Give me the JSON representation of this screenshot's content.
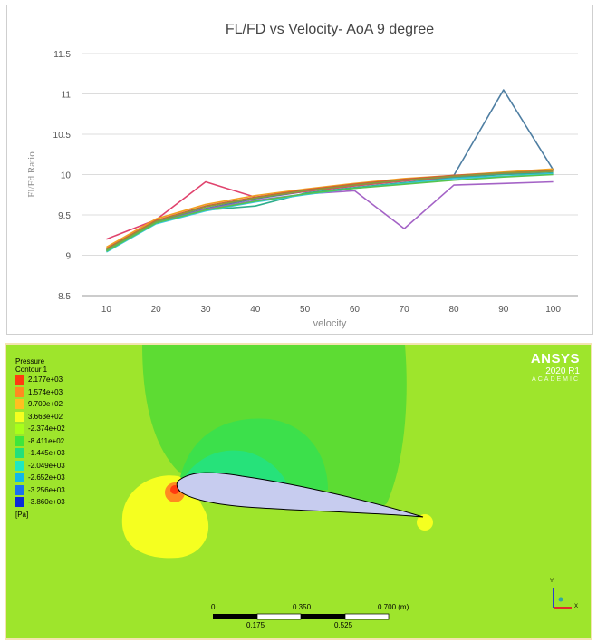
{
  "chart_data": {
    "type": "line",
    "title": "FL/FD vs Velocity- AoA 9 degree",
    "xlabel": "velocity",
    "ylabel": "Fl/Fd Ratio",
    "categories": [
      "10",
      "20",
      "30",
      "40",
      "50",
      "60",
      "70",
      "80",
      "90",
      "100"
    ],
    "ylim": [
      8.5,
      11.5
    ],
    "yticks": [
      "8.5",
      "9",
      "9.5",
      "10",
      "10.5",
      "11",
      "11.5"
    ],
    "grid": true,
    "legend": "none",
    "series": [
      {
        "color": "#4e7ea2",
        "values": [
          9.06,
          9.41,
          9.58,
          9.7,
          9.79,
          9.86,
          9.92,
          9.99,
          11.05,
          10.06
        ]
      },
      {
        "color": "#e0436d",
        "values": [
          9.2,
          9.44,
          9.91,
          9.72,
          9.79,
          9.86,
          9.92,
          9.97,
          10.01,
          10.04
        ]
      },
      {
        "color": "#f0a020",
        "values": [
          9.1,
          9.45,
          9.63,
          9.74,
          9.82,
          9.89,
          9.95,
          9.99,
          10.03,
          10.07
        ]
      },
      {
        "color": "#d2563a",
        "values": [
          9.08,
          9.43,
          9.61,
          9.72,
          9.81,
          9.88,
          9.94,
          9.99,
          10.02,
          10.05
        ]
      },
      {
        "color": "#2fae8c",
        "values": [
          9.06,
          9.41,
          9.56,
          9.61,
          9.77,
          9.84,
          9.9,
          9.96,
          10.0,
          10.02
        ]
      },
      {
        "color": "#8b9a3a",
        "values": [
          9.07,
          9.42,
          9.6,
          9.71,
          9.8,
          9.87,
          9.93,
          9.98,
          10.02,
          10.04
        ]
      },
      {
        "color": "#a463c6",
        "values": [
          9.05,
          9.4,
          9.57,
          9.68,
          9.76,
          9.8,
          9.33,
          9.87,
          9.89,
          9.91
        ]
      },
      {
        "color": "#39c6e0",
        "values": [
          9.04,
          9.39,
          9.55,
          9.66,
          9.75,
          9.83,
          9.89,
          9.95,
          9.98,
          10.01
        ]
      },
      {
        "color": "#55c44f",
        "values": [
          9.05,
          9.4,
          9.56,
          9.67,
          9.76,
          9.83,
          9.88,
          9.93,
          9.97,
          10.0
        ]
      }
    ]
  },
  "cfd": {
    "legend_title_1": "Pressure",
    "legend_title_2": "Contour 1",
    "legend_labels": [
      "2.177e+03",
      "1.574e+03",
      "9.700e+02",
      "3.663e+02",
      "-2.374e+02",
      "-8.411e+02",
      "-1.445e+03",
      "-2.049e+03",
      "-2.652e+03",
      "-3.256e+03",
      "-3.860e+03"
    ],
    "legend_colors": [
      "#ff3a10",
      "#ff8a20",
      "#ffc020",
      "#f5ff20",
      "#a8ff1a",
      "#3fe63b",
      "#22e07a",
      "#1fe8c0",
      "#10b8e8",
      "#1a70f0",
      "#0a2bd8"
    ],
    "unit": "[Pa]",
    "brand": {
      "name": "ANSYS",
      "version": "2020 R1",
      "edition": "ACADEMIC"
    },
    "scale": {
      "top": [
        "0",
        "0.350",
        "0.700 (m)"
      ],
      "bottom": [
        "0.175",
        "0.525"
      ]
    },
    "axis": {
      "y": "Y",
      "x": "X"
    }
  }
}
